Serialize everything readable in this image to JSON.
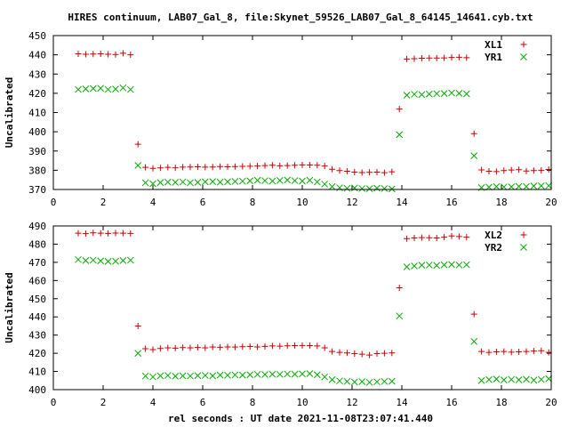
{
  "chart_data": [
    {
      "type": "scatter",
      "title": "HIRES continuum, LAB07_Gal_8, file:Skynet_59526_LAB07_Gal_8_64145_14641.cyb.txt",
      "xlabel": "",
      "ylabel": "Uncalibrated",
      "xlim": [
        0,
        20
      ],
      "ylim": [
        370,
        450
      ],
      "xticks": [
        "0",
        "2",
        "4",
        "6",
        "8",
        "10",
        "12",
        "14",
        "16",
        "18",
        "20"
      ],
      "yticks": [
        "370",
        "380",
        "390",
        "400",
        "410",
        "420",
        "430",
        "440",
        "450"
      ],
      "legend": "top-right",
      "series": [
        {
          "name": "XL1",
          "color": "#cc0000",
          "marker": "plus",
          "points": [
            [
              1.0,
              440.5
            ],
            [
              1.3,
              440.3
            ],
            [
              1.6,
              440.4
            ],
            [
              1.9,
              440.5
            ],
            [
              2.2,
              440.3
            ],
            [
              2.5,
              440.2
            ],
            [
              2.8,
              440.8
            ],
            [
              3.1,
              440.0
            ],
            [
              3.4,
              393.5
            ],
            [
              3.7,
              381.5
            ],
            [
              4.0,
              381.0
            ],
            [
              4.3,
              381.2
            ],
            [
              4.6,
              381.5
            ],
            [
              4.9,
              381.3
            ],
            [
              5.2,
              381.6
            ],
            [
              5.5,
              381.7
            ],
            [
              5.8,
              381.8
            ],
            [
              6.1,
              381.6
            ],
            [
              6.4,
              381.7
            ],
            [
              6.7,
              381.9
            ],
            [
              7.0,
              381.8
            ],
            [
              7.3,
              381.9
            ],
            [
              7.6,
              382.0
            ],
            [
              7.9,
              382.1
            ],
            [
              8.2,
              382.2
            ],
            [
              8.5,
              382.4
            ],
            [
              8.8,
              382.6
            ],
            [
              9.1,
              382.3
            ],
            [
              9.4,
              382.4
            ],
            [
              9.7,
              382.6
            ],
            [
              10.0,
              382.8
            ],
            [
              10.3,
              382.7
            ],
            [
              10.6,
              382.6
            ],
            [
              10.9,
              382.2
            ],
            [
              11.2,
              380.5
            ],
            [
              11.5,
              379.8
            ],
            [
              11.8,
              379.5
            ],
            [
              12.1,
              379.0
            ],
            [
              12.4,
              378.8
            ],
            [
              12.7,
              378.9
            ],
            [
              13.0,
              379.0
            ],
            [
              13.3,
              378.7
            ],
            [
              13.6,
              379.2
            ],
            [
              13.9,
              411.8
            ],
            [
              14.2,
              437.8
            ],
            [
              14.5,
              438.0
            ],
            [
              14.8,
              438.2
            ],
            [
              15.1,
              438.3
            ],
            [
              15.4,
              438.3
            ],
            [
              15.7,
              438.4
            ],
            [
              16.0,
              438.6
            ],
            [
              16.3,
              438.7
            ],
            [
              16.6,
              438.5
            ],
            [
              16.9,
              399.0
            ],
            [
              17.2,
              380.2
            ],
            [
              17.5,
              379.5
            ],
            [
              17.8,
              379.3
            ],
            [
              18.1,
              379.8
            ],
            [
              18.4,
              380.1
            ],
            [
              18.7,
              380.3
            ],
            [
              19.0,
              379.6
            ],
            [
              19.3,
              379.8
            ],
            [
              19.6,
              379.9
            ],
            [
              19.9,
              380.4
            ]
          ]
        },
        {
          "name": "YR1",
          "color": "#00aa00",
          "marker": "x",
          "points": [
            [
              1.0,
              422.0
            ],
            [
              1.3,
              422.3
            ],
            [
              1.6,
              422.5
            ],
            [
              1.9,
              422.6
            ],
            [
              2.2,
              422.0
            ],
            [
              2.5,
              422.2
            ],
            [
              2.8,
              422.8
            ],
            [
              3.1,
              422.0
            ],
            [
              3.4,
              382.5
            ],
            [
              3.7,
              373.5
            ],
            [
              4.0,
              373.0
            ],
            [
              4.3,
              373.6
            ],
            [
              4.6,
              373.8
            ],
            [
              4.9,
              373.7
            ],
            [
              5.2,
              373.9
            ],
            [
              5.5,
              373.5
            ],
            [
              5.8,
              373.7
            ],
            [
              6.1,
              374.0
            ],
            [
              6.4,
              374.1
            ],
            [
              6.7,
              373.8
            ],
            [
              7.0,
              374.0
            ],
            [
              7.3,
              374.2
            ],
            [
              7.6,
              374.3
            ],
            [
              7.9,
              374.5
            ],
            [
              8.2,
              374.8
            ],
            [
              8.5,
              374.6
            ],
            [
              8.8,
              374.4
            ],
            [
              9.1,
              374.7
            ],
            [
              9.4,
              374.9
            ],
            [
              9.7,
              374.6
            ],
            [
              10.0,
              374.4
            ],
            [
              10.3,
              374.8
            ],
            [
              10.6,
              373.9
            ],
            [
              10.9,
              372.8
            ],
            [
              11.2,
              371.5
            ],
            [
              11.5,
              370.9
            ],
            [
              11.8,
              370.6
            ],
            [
              12.1,
              370.8
            ],
            [
              12.4,
              370.5
            ],
            [
              12.7,
              370.4
            ],
            [
              13.0,
              370.7
            ],
            [
              13.3,
              370.5
            ],
            [
              13.6,
              370.3
            ],
            [
              13.9,
              398.5
            ],
            [
              14.2,
              419.0
            ],
            [
              14.5,
              419.5
            ],
            [
              14.8,
              419.3
            ],
            [
              15.1,
              419.6
            ],
            [
              15.4,
              419.8
            ],
            [
              15.7,
              419.9
            ],
            [
              16.0,
              420.2
            ],
            [
              16.3,
              420.0
            ],
            [
              16.6,
              419.7
            ],
            [
              16.9,
              387.5
            ],
            [
              17.2,
              371.0
            ],
            [
              17.5,
              371.2
            ],
            [
              17.8,
              371.5
            ],
            [
              18.1,
              371.3
            ],
            [
              18.4,
              371.4
            ],
            [
              18.7,
              371.6
            ],
            [
              19.0,
              371.5
            ],
            [
              19.3,
              371.8
            ],
            [
              19.6,
              371.9
            ],
            [
              19.9,
              372.0
            ]
          ]
        }
      ]
    },
    {
      "type": "scatter",
      "title": "",
      "xlabel": "rel seconds : UT date 2021-11-08T23:07:41.440",
      "ylabel": "Uncalibrated",
      "xlim": [
        0,
        20
      ],
      "ylim": [
        400,
        490
      ],
      "xticks": [
        "0",
        "2",
        "4",
        "6",
        "8",
        "10",
        "12",
        "14",
        "16",
        "18",
        "20"
      ],
      "yticks": [
        "400",
        "410",
        "420",
        "430",
        "440",
        "450",
        "460",
        "470",
        "480",
        "490"
      ],
      "legend": "top-right",
      "series": [
        {
          "name": "XL2",
          "color": "#cc0000",
          "marker": "plus",
          "points": [
            [
              1.0,
              486.0
            ],
            [
              1.3,
              485.8
            ],
            [
              1.6,
              486.2
            ],
            [
              1.9,
              486.0
            ],
            [
              2.2,
              485.9
            ],
            [
              2.5,
              486.1
            ],
            [
              2.8,
              486.0
            ],
            [
              3.1,
              485.9
            ],
            [
              3.4,
              435.0
            ],
            [
              3.7,
              422.5
            ],
            [
              4.0,
              422.0
            ],
            [
              4.3,
              422.6
            ],
            [
              4.6,
              423.0
            ],
            [
              4.9,
              422.8
            ],
            [
              5.2,
              423.1
            ],
            [
              5.5,
              423.0
            ],
            [
              5.8,
              423.2
            ],
            [
              6.1,
              423.0
            ],
            [
              6.4,
              423.4
            ],
            [
              6.7,
              423.3
            ],
            [
              7.0,
              423.5
            ],
            [
              7.3,
              423.4
            ],
            [
              7.6,
              423.6
            ],
            [
              7.9,
              423.7
            ],
            [
              8.2,
              423.5
            ],
            [
              8.5,
              423.8
            ],
            [
              8.8,
              424.0
            ],
            [
              9.1,
              423.9
            ],
            [
              9.4,
              424.1
            ],
            [
              9.7,
              424.2
            ],
            [
              10.0,
              424.3
            ],
            [
              10.3,
              424.2
            ],
            [
              10.6,
              424.0
            ],
            [
              10.9,
              423.0
            ],
            [
              11.2,
              421.0
            ],
            [
              11.5,
              420.5
            ],
            [
              11.8,
              420.2
            ],
            [
              12.1,
              419.8
            ],
            [
              12.4,
              419.5
            ],
            [
              12.7,
              419.0
            ],
            [
              13.0,
              419.8
            ],
            [
              13.3,
              420.0
            ],
            [
              13.6,
              420.2
            ],
            [
              13.9,
              456.0
            ],
            [
              14.2,
              483.0
            ],
            [
              14.5,
              483.4
            ],
            [
              14.8,
              483.6
            ],
            [
              15.1,
              483.5
            ],
            [
              15.4,
              483.4
            ],
            [
              15.7,
              483.8
            ],
            [
              16.0,
              484.5
            ],
            [
              16.3,
              484.2
            ],
            [
              16.6,
              483.8
            ],
            [
              16.9,
              441.5
            ],
            [
              17.2,
              421.0
            ],
            [
              17.5,
              420.5
            ],
            [
              17.8,
              420.8
            ],
            [
              18.1,
              421.0
            ],
            [
              18.4,
              420.6
            ],
            [
              18.7,
              420.8
            ],
            [
              19.0,
              421.0
            ],
            [
              19.3,
              421.2
            ],
            [
              19.6,
              421.4
            ],
            [
              19.9,
              420.5
            ]
          ]
        },
        {
          "name": "YR2",
          "color": "#00aa00",
          "marker": "x",
          "points": [
            [
              1.0,
              471.5
            ],
            [
              1.3,
              471.0
            ],
            [
              1.6,
              471.2
            ],
            [
              1.9,
              470.8
            ],
            [
              2.2,
              470.5
            ],
            [
              2.5,
              470.6
            ],
            [
              2.8,
              471.0
            ],
            [
              3.1,
              471.2
            ],
            [
              3.4,
              420.0
            ],
            [
              3.7,
              407.5
            ],
            [
              4.0,
              407.0
            ],
            [
              4.3,
              407.6
            ],
            [
              4.6,
              407.8
            ],
            [
              4.9,
              407.4
            ],
            [
              5.2,
              407.6
            ],
            [
              5.5,
              407.5
            ],
            [
              5.8,
              407.7
            ],
            [
              6.1,
              407.8
            ],
            [
              6.4,
              407.6
            ],
            [
              6.7,
              408.0
            ],
            [
              7.0,
              407.9
            ],
            [
              7.3,
              408.1
            ],
            [
              7.6,
              408.0
            ],
            [
              7.9,
              408.2
            ],
            [
              8.2,
              408.4
            ],
            [
              8.5,
              408.3
            ],
            [
              8.8,
              408.5
            ],
            [
              9.1,
              408.4
            ],
            [
              9.4,
              408.6
            ],
            [
              9.7,
              408.5
            ],
            [
              10.0,
              408.7
            ],
            [
              10.3,
              408.8
            ],
            [
              10.6,
              408.2
            ],
            [
              10.9,
              407.0
            ],
            [
              11.2,
              405.5
            ],
            [
              11.5,
              404.8
            ],
            [
              11.8,
              404.5
            ],
            [
              12.1,
              404.2
            ],
            [
              12.4,
              404.4
            ],
            [
              12.7,
              404.0
            ],
            [
              13.0,
              404.3
            ],
            [
              13.3,
              404.5
            ],
            [
              13.6,
              404.6
            ],
            [
              13.9,
              440.5
            ],
            [
              14.2,
              467.5
            ],
            [
              14.5,
              468.0
            ],
            [
              14.8,
              468.4
            ],
            [
              15.1,
              468.5
            ],
            [
              15.4,
              468.3
            ],
            [
              15.7,
              468.6
            ],
            [
              16.0,
              468.8
            ],
            [
              16.3,
              468.5
            ],
            [
              16.6,
              468.7
            ],
            [
              16.9,
              426.5
            ],
            [
              17.2,
              405.0
            ],
            [
              17.5,
              405.5
            ],
            [
              17.8,
              405.8
            ],
            [
              18.1,
              405.3
            ],
            [
              18.4,
              405.6
            ],
            [
              18.7,
              405.4
            ],
            [
              19.0,
              405.7
            ],
            [
              19.3,
              405.2
            ],
            [
              19.6,
              405.6
            ],
            [
              19.9,
              406.0
            ]
          ]
        }
      ]
    }
  ]
}
